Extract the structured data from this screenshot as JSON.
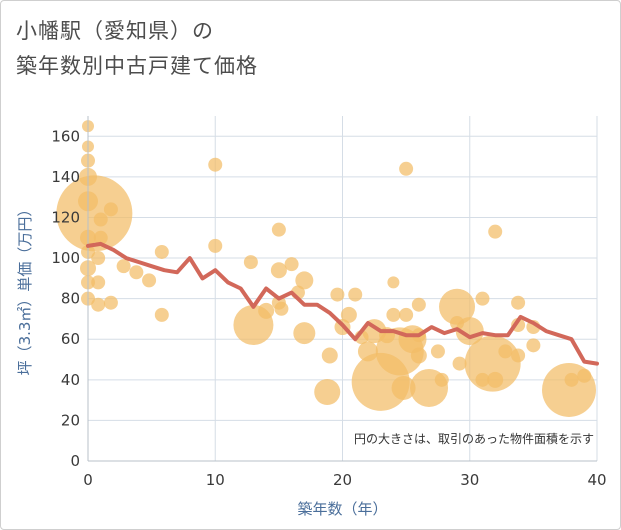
{
  "title_line1": "小幡駅（愛知県）の",
  "title_line2": "築年数別中古戸建て価格",
  "colors": {
    "bubble": "#f2bd66",
    "line": "#d2685a",
    "grid": "#d5dde6",
    "plot_bg": "#ffffff"
  },
  "chart_data": {
    "type": "scatter",
    "xlabel": "築年数（年）",
    "ylabel": "坪（3.3㎡）単価（万円）",
    "xlim": [
      0,
      40
    ],
    "ylim": [
      0,
      170
    ],
    "x_ticks": [
      0,
      10,
      20,
      30,
      40
    ],
    "y_ticks": [
      0,
      20,
      40,
      60,
      80,
      100,
      120,
      140,
      160
    ],
    "grid": true,
    "annotation": "円の大きさは、取引のあった物件面積を示す",
    "bubbles": [
      {
        "x": 0,
        "y": 165,
        "s": 6
      },
      {
        "x": 0,
        "y": 155,
        "s": 6
      },
      {
        "x": 0,
        "y": 148,
        "s": 7
      },
      {
        "x": 0,
        "y": 140,
        "s": 9
      },
      {
        "x": 0,
        "y": 128,
        "s": 10
      },
      {
        "x": 0,
        "y": 110,
        "s": 8
      },
      {
        "x": 0,
        "y": 103,
        "s": 7
      },
      {
        "x": 0,
        "y": 95,
        "s": 8
      },
      {
        "x": 0,
        "y": 88,
        "s": 7
      },
      {
        "x": 0,
        "y": 80,
        "s": 7
      },
      {
        "x": 0.5,
        "y": 122,
        "s": 38
      },
      {
        "x": 0.8,
        "y": 100,
        "s": 7
      },
      {
        "x": 0.8,
        "y": 88,
        "s": 7
      },
      {
        "x": 0.8,
        "y": 77,
        "s": 7
      },
      {
        "x": 1,
        "y": 119,
        "s": 7
      },
      {
        "x": 1,
        "y": 110,
        "s": 7
      },
      {
        "x": 1.8,
        "y": 124,
        "s": 7
      },
      {
        "x": 1.8,
        "y": 78,
        "s": 7
      },
      {
        "x": 2.8,
        "y": 96,
        "s": 7
      },
      {
        "x": 3.8,
        "y": 93,
        "s": 7
      },
      {
        "x": 4.8,
        "y": 89,
        "s": 7
      },
      {
        "x": 5.8,
        "y": 103,
        "s": 7
      },
      {
        "x": 5.8,
        "y": 72,
        "s": 7
      },
      {
        "x": 10,
        "y": 146,
        "s": 7
      },
      {
        "x": 10,
        "y": 106,
        "s": 7
      },
      {
        "x": 12.8,
        "y": 98,
        "s": 7
      },
      {
        "x": 13,
        "y": 67,
        "s": 20
      },
      {
        "x": 14,
        "y": 74,
        "s": 8
      },
      {
        "x": 15,
        "y": 114,
        "s": 7
      },
      {
        "x": 15,
        "y": 94,
        "s": 8
      },
      {
        "x": 15,
        "y": 78,
        "s": 7
      },
      {
        "x": 15.2,
        "y": 75,
        "s": 7
      },
      {
        "x": 16,
        "y": 97,
        "s": 7
      },
      {
        "x": 16.5,
        "y": 83,
        "s": 7
      },
      {
        "x": 17,
        "y": 89,
        "s": 9
      },
      {
        "x": 17,
        "y": 63,
        "s": 11
      },
      {
        "x": 18.8,
        "y": 34,
        "s": 13
      },
      {
        "x": 19,
        "y": 52,
        "s": 8
      },
      {
        "x": 19.6,
        "y": 82,
        "s": 7
      },
      {
        "x": 20,
        "y": 66,
        "s": 8
      },
      {
        "x": 20.5,
        "y": 72,
        "s": 8
      },
      {
        "x": 21,
        "y": 82,
        "s": 7
      },
      {
        "x": 21.5,
        "y": 61,
        "s": 7
      },
      {
        "x": 22,
        "y": 54,
        "s": 10
      },
      {
        "x": 22.5,
        "y": 64,
        "s": 12
      },
      {
        "x": 23,
        "y": 39,
        "s": 29
      },
      {
        "x": 23.5,
        "y": 62,
        "s": 8
      },
      {
        "x": 24,
        "y": 88,
        "s": 6
      },
      {
        "x": 24,
        "y": 72,
        "s": 7
      },
      {
        "x": 24.5,
        "y": 54,
        "s": 24
      },
      {
        "x": 24.8,
        "y": 36,
        "s": 12
      },
      {
        "x": 25,
        "y": 144,
        "s": 7
      },
      {
        "x": 25,
        "y": 72,
        "s": 7
      },
      {
        "x": 25.5,
        "y": 60,
        "s": 14
      },
      {
        "x": 26,
        "y": 77,
        "s": 7
      },
      {
        "x": 26,
        "y": 62,
        "s": 7
      },
      {
        "x": 26,
        "y": 52,
        "s": 8
      },
      {
        "x": 26.8,
        "y": 36,
        "s": 19
      },
      {
        "x": 27.5,
        "y": 54,
        "s": 7
      },
      {
        "x": 27.8,
        "y": 40,
        "s": 7
      },
      {
        "x": 29,
        "y": 76,
        "s": 18
      },
      {
        "x": 29,
        "y": 68,
        "s": 7
      },
      {
        "x": 29.2,
        "y": 48,
        "s": 7
      },
      {
        "x": 30,
        "y": 64,
        "s": 14
      },
      {
        "x": 31,
        "y": 80,
        "s": 7
      },
      {
        "x": 31,
        "y": 40,
        "s": 7
      },
      {
        "x": 31.8,
        "y": 48,
        "s": 28
      },
      {
        "x": 32,
        "y": 113,
        "s": 7
      },
      {
        "x": 32,
        "y": 40,
        "s": 8
      },
      {
        "x": 32.8,
        "y": 54,
        "s": 7
      },
      {
        "x": 33.8,
        "y": 78,
        "s": 7
      },
      {
        "x": 33.8,
        "y": 67,
        "s": 7
      },
      {
        "x": 33.8,
        "y": 52,
        "s": 7
      },
      {
        "x": 35,
        "y": 66,
        "s": 7
      },
      {
        "x": 35,
        "y": 57,
        "s": 7
      },
      {
        "x": 37.8,
        "y": 35,
        "s": 27
      },
      {
        "x": 38,
        "y": 40,
        "s": 7
      },
      {
        "x": 39,
        "y": 42,
        "s": 7
      }
    ],
    "line": {
      "x": [
        0,
        1,
        2,
        3,
        4,
        5,
        6,
        7,
        8,
        9,
        10,
        11,
        12,
        13,
        14,
        15,
        16,
        17,
        18,
        19,
        20,
        21,
        22,
        23,
        24,
        25,
        26,
        27,
        28,
        29,
        30,
        31,
        32,
        33,
        34,
        35,
        36,
        37,
        38,
        39,
        40
      ],
      "y": [
        106,
        107,
        104,
        100,
        98,
        96,
        94,
        93,
        100,
        90,
        94,
        88,
        85,
        76,
        85,
        80,
        83,
        77,
        77,
        73,
        67,
        60,
        68,
        64,
        64,
        62,
        62,
        66,
        63,
        65,
        61,
        63,
        62,
        62,
        71,
        68,
        64,
        62,
        60,
        49,
        48
      ]
    }
  }
}
